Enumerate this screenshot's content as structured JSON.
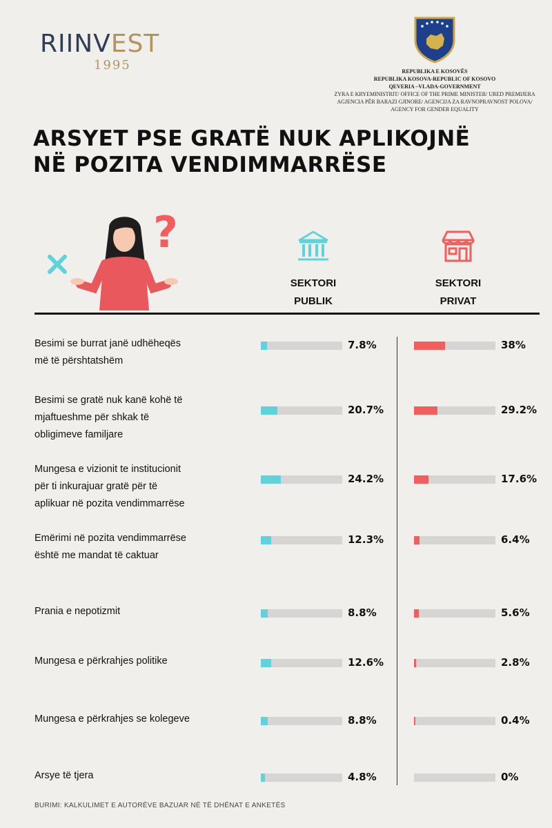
{
  "header": {
    "logo": {
      "brand_dark": "RIINV",
      "brand_gold": "EST",
      "year": "1995"
    },
    "government": {
      "lines": [
        "REPUBLIKA E KOSOVËS",
        "REPUBLIKA KOSOVA-REPUBLIC OF KOSOVO",
        "QEVERIA –VLADA-GOVERNMENT",
        "ZYRA E KRYEMINISTRIT/ OFFICE OF THE PRIME MINISTER/ URED PREMIJERA",
        "AGJENCIA PËR BARAZI GJINORE/ AGENCIJA ZA RAVNOPRAVNOST POLOVA/",
        "AGENCY FOR GENDER EQUALITY"
      ]
    }
  },
  "title": {
    "line1": "ARSYET PSE GRATË NUK APLIKOJNË",
    "line2": "NË POZITA VENDIMMARRËSE"
  },
  "columns": {
    "public": {
      "line1": "SEKTORI",
      "line2": "PUBLIK",
      "icon": "government-building-icon"
    },
    "private": {
      "line1": "SEKTORI",
      "line2": "PRIVAT",
      "icon": "storefront-icon"
    }
  },
  "colors": {
    "public": "#5fd3dc",
    "private": "#f25e5e",
    "track": "#d6d5d3"
  },
  "chart_data": {
    "type": "bar",
    "categories": [
      "Besimi se burrat janë udhëheqës më të përshtatshëm",
      "Besimi se gratë nuk kanë kohë të mjaftueshme për shkak të obligimeve familjare",
      "Mungesa e vizionit te institucionit për ti inkurajuar gratë për të aplikuar në pozita vendimmarrëse",
      "Emërimi në pozita vendimmarrëse është me mandat të caktuar",
      "Prania e nepotizmit",
      "Mungesa e përkrahjes politike",
      "Mungesa e përkrahjes se kolegeve",
      "Arsye të tjera"
    ],
    "series": [
      {
        "name": "SEKTORI PUBLIK",
        "values": [
          7.8,
          20.7,
          24.2,
          12.3,
          8.8,
          12.6,
          8.8,
          4.8
        ]
      },
      {
        "name": "SEKTORI PRIVAT",
        "values": [
          38,
          29.2,
          17.6,
          6.4,
          5.6,
          2.8,
          0.4,
          0
        ]
      }
    ],
    "value_labels": {
      "public": [
        "7.8%",
        "20.7%",
        "24.2%",
        "12.3%",
        "8.8%",
        "12.6%",
        "8.8%",
        "4.8%"
      ],
      "private": [
        "38%",
        "29.2%",
        "17.6%",
        "6.4%",
        "5.6%",
        "2.8%",
        "0.4%",
        "0%"
      ]
    },
    "row_labels": [
      "Besimi se burrat janë udhëheqës\nmë të përshtatshëm",
      "Besimi se gratë nuk kanë kohë të\nmjaftueshme për shkak të\n obligimeve familjare",
      "Mungesa e vizionit te institucionit\npër ti inkurajuar gratë për të\naplikuar në pozita vendimmarrëse",
      "Emërimi në pozita vendimmarrëse\nështë me mandat të caktuar",
      "Prania e nepotizmit",
      "Mungesa e përkrahjes politike",
      "Mungesa e përkrahjes se kolegeve",
      "Arsye të tjera"
    ],
    "xlim": [
      0,
      100
    ]
  },
  "source": "BURIMI: KALKULIMET E AUTORËVE BAZUAR NË TË DHËNAT E ANKETËS"
}
